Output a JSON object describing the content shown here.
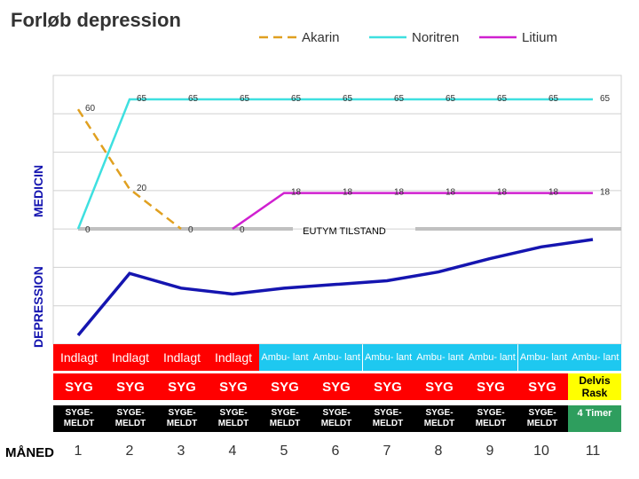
{
  "chart_data": {
    "type": "line",
    "title": "Forløb depression",
    "ylabel_medicin": "MEDICIN",
    "ylabel_depression": "DEPRESSION",
    "xlabel": "MÅNED",
    "x": [
      1,
      2,
      3,
      4,
      5,
      6,
      7,
      8,
      9,
      10,
      11
    ],
    "series": [
      {
        "name": "Akarin",
        "style": "dashed",
        "color": "#E0A020",
        "points": [
          [
            1,
            60
          ],
          [
            2,
            20
          ],
          [
            3,
            0
          ]
        ],
        "labels": [
          "60",
          "20",
          "0"
        ]
      },
      {
        "name": "Noritren",
        "style": "solid",
        "color": "#3EE0E0",
        "points": [
          [
            1,
            0
          ],
          [
            2,
            65
          ],
          [
            3,
            65
          ],
          [
            4,
            65
          ],
          [
            5,
            65
          ],
          [
            6,
            65
          ],
          [
            7,
            65
          ],
          [
            8,
            65
          ],
          [
            9,
            65
          ],
          [
            10,
            65
          ],
          [
            11,
            65
          ]
        ],
        "labels": [
          "0",
          "65",
          "65",
          "65",
          "65",
          "65",
          "65",
          "65",
          "65",
          "65",
          "65"
        ]
      },
      {
        "name": "Litium",
        "style": "solid",
        "color": "#D020D0",
        "points": [
          [
            4,
            0
          ],
          [
            5,
            18
          ],
          [
            6,
            18
          ],
          [
            7,
            18
          ],
          [
            8,
            18
          ],
          [
            9,
            18
          ],
          [
            10,
            18
          ],
          [
            11,
            18
          ]
        ],
        "labels": [
          "0",
          "18",
          "18",
          "18",
          "18",
          "18",
          "18",
          "18"
        ]
      }
    ],
    "baseline_label": "EUTYM TILSTAND",
    "depression_series": {
      "color": "#1515B0",
      "values": [
        1.0,
        5.2,
        4.2,
        3.8,
        4.2,
        4.45,
        4.7,
        5.3,
        6.2,
        7.0,
        7.5
      ]
    },
    "ylim_medicin": [
      0,
      70
    ],
    "ylim_depression": [
      0,
      10
    ],
    "grid": true,
    "legend": "top-right"
  },
  "rows": {
    "status": [
      "Indlagt",
      "Indlagt",
      "Indlagt",
      "Indlagt",
      "Ambu- lant",
      "Ambu- lant",
      "Ambu- lant",
      "Ambu- lant",
      "Ambu- lant",
      "Ambu- lant",
      "Ambu- lant"
    ],
    "syg": [
      "SYG",
      "SYG",
      "SYG",
      "SYG",
      "SYG",
      "SYG",
      "SYG",
      "SYG",
      "SYG",
      "SYG"
    ],
    "syg_last": [
      "Delvis",
      "Rask"
    ],
    "meldt": [
      "SYGE-",
      "MELDT"
    ],
    "meldt_last": "4 Timer"
  },
  "colors": {
    "red": "#FF0000",
    "cyan": "#1EC8F0",
    "yellow": "#FFFF00",
    "black": "#000000",
    "green": "#2E9E5E",
    "grid": "#D0D0D0",
    "baseline": "#C0C0C0"
  }
}
